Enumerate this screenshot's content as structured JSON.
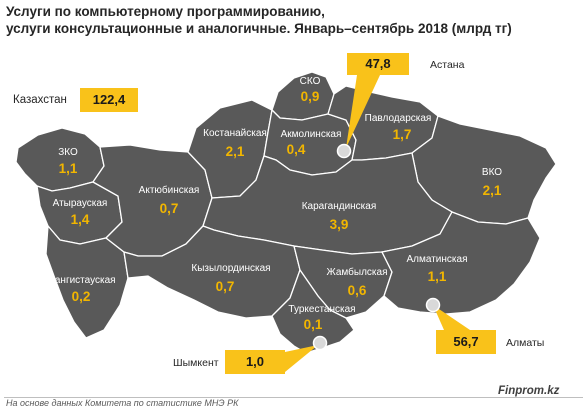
{
  "title": {
    "line1": "Услуги по компьютерному программированию,",
    "line2": "услуги консультационные и аналогичные. Январь–сентябрь 2018 (млрд тг)"
  },
  "country": {
    "label": "Казахстан",
    "value": "122,4"
  },
  "cities": {
    "astana": {
      "label": "Астана",
      "value": "47,8"
    },
    "almaty": {
      "label": "Алматы",
      "value": "56,7"
    },
    "shymkent": {
      "label": "Шымкент",
      "value": "1,0"
    }
  },
  "regions": {
    "zko": {
      "name": "ЗКО",
      "value": "1,1"
    },
    "atyrau": {
      "name": "Атырауская",
      "value": "1,4"
    },
    "mangistau": {
      "name": "Мангистауская",
      "value": "0,2"
    },
    "aktobe": {
      "name": "Актюбинская",
      "value": "0,7"
    },
    "kostanay": {
      "name": "Костанайская",
      "value": "2,1"
    },
    "sko": {
      "name": "СКО",
      "value": "0,9"
    },
    "akmola": {
      "name": "Акмолинская",
      "value": "0,4"
    },
    "pavlodar": {
      "name": "Павлодарская",
      "value": "1,7"
    },
    "vko": {
      "name": "ВКО",
      "value": "2,1"
    },
    "karaganda": {
      "name": "Карагандинская",
      "value": "3,9"
    },
    "kyzylorda": {
      "name": "Кызылординская",
      "value": "0,7"
    },
    "zhambyl": {
      "name": "Жамбылская",
      "value": "0,6"
    },
    "almaty_obl": {
      "name": "Алматинская",
      "value": "1,1"
    },
    "turkestan": {
      "name": "Туркестанская",
      "value": "0,1"
    }
  },
  "colors": {
    "region_fill": "#595959",
    "value_text": "#f2b600",
    "callout_box": "#f9c21a"
  },
  "source": "На основе данных Комитета по статистике МНЭ РК",
  "brand": "Finprom.kz"
}
